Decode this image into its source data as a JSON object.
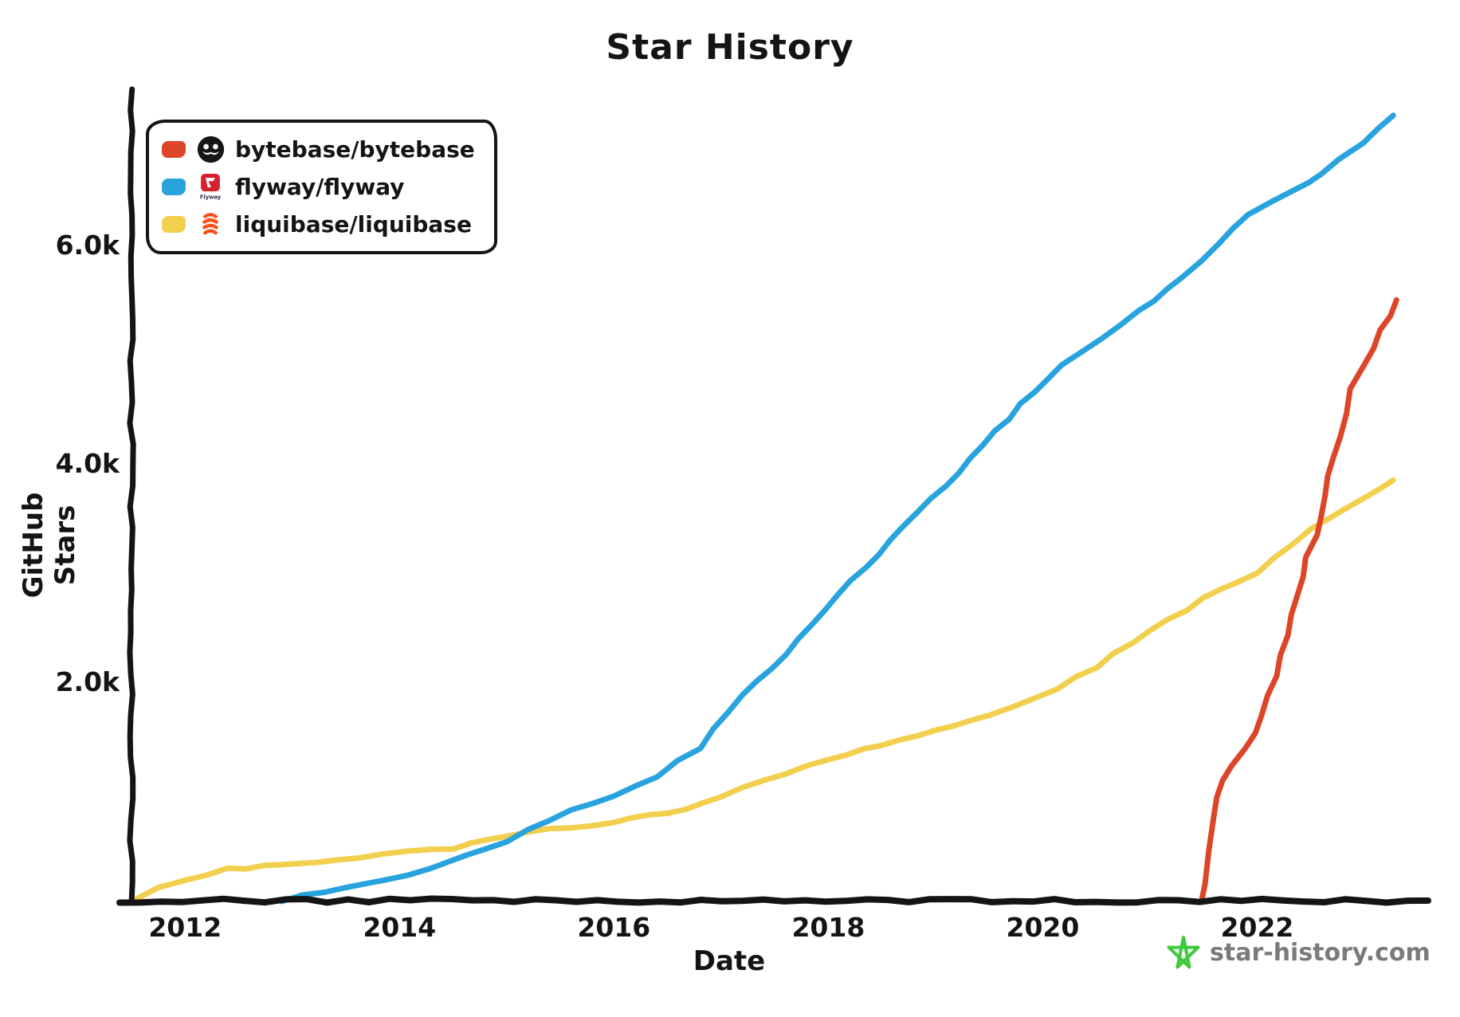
{
  "watermark": {
    "label": "star-history.com",
    "star_color": "#3ecb3e",
    "text_color": "#7a7a7a"
  },
  "legend": {
    "flyway_icon_text": "Flyway"
  },
  "colors": {
    "background": "#ffffff",
    "axis": "#141414",
    "bytebase": "#dd4528",
    "flyway": "#28a3dd",
    "liquibase": "#f2cf4d"
  },
  "chart_data": {
    "type": "line",
    "title": "Star History",
    "xlabel": "Date",
    "ylabel": "GitHub Stars",
    "grid": false,
    "legend_position": "top-left",
    "xlim": [
      2011.5,
      2023.58
    ],
    "ylim": [
      0,
      7400
    ],
    "x_ticks": [
      2012,
      2014,
      2016,
      2018,
      2020,
      2022
    ],
    "y_ticks": [
      {
        "value": 2000,
        "label": "2.0k"
      },
      {
        "value": 4000,
        "label": "4.0k"
      },
      {
        "value": 6000,
        "label": "6.0k"
      }
    ],
    "series": [
      {
        "name": "bytebase/bytebase",
        "color": "#dd4528",
        "points": [
          [
            2021.48,
            0
          ],
          [
            2021.52,
            310
          ],
          [
            2021.56,
            620
          ],
          [
            2021.62,
            950
          ],
          [
            2021.75,
            1240
          ],
          [
            2021.9,
            1390
          ],
          [
            2022.05,
            1690
          ],
          [
            2022.17,
            2060
          ],
          [
            2022.28,
            2430
          ],
          [
            2022.38,
            2800
          ],
          [
            2022.46,
            3140
          ],
          [
            2022.56,
            3350
          ],
          [
            2022.67,
            3880
          ],
          [
            2022.78,
            4240
          ],
          [
            2022.88,
            4680
          ],
          [
            2023.0,
            4900
          ],
          [
            2023.16,
            5220
          ],
          [
            2023.3,
            5500
          ]
        ]
      },
      {
        "name": "flyway/flyway",
        "color": "#28a3dd",
        "points": [
          [
            2012.9,
            0
          ],
          [
            2013.3,
            80
          ],
          [
            2013.85,
            180
          ],
          [
            2014.3,
            300
          ],
          [
            2014.8,
            460
          ],
          [
            2015.2,
            640
          ],
          [
            2015.6,
            830
          ],
          [
            2016.0,
            950
          ],
          [
            2016.4,
            1140
          ],
          [
            2016.8,
            1400
          ],
          [
            2017.2,
            1880
          ],
          [
            2017.6,
            2260
          ],
          [
            2017.95,
            2660
          ],
          [
            2018.35,
            3060
          ],
          [
            2018.7,
            3420
          ],
          [
            2019.1,
            3800
          ],
          [
            2019.44,
            4170
          ],
          [
            2019.8,
            4540
          ],
          [
            2020.18,
            4900
          ],
          [
            2020.55,
            5140
          ],
          [
            2020.9,
            5390
          ],
          [
            2021.3,
            5700
          ],
          [
            2021.65,
            6020
          ],
          [
            2021.92,
            6270
          ],
          [
            2022.12,
            6400
          ],
          [
            2022.35,
            6500
          ],
          [
            2022.6,
            6650
          ],
          [
            2022.77,
            6780
          ],
          [
            2023.0,
            6930
          ],
          [
            2023.27,
            7190
          ]
        ]
      },
      {
        "name": "liquibase/liquibase",
        "color": "#f2cf4d",
        "points": [
          [
            2011.5,
            0
          ],
          [
            2011.75,
            120
          ],
          [
            2012.0,
            190
          ],
          [
            2012.4,
            290
          ],
          [
            2012.9,
            330
          ],
          [
            2013.4,
            380
          ],
          [
            2013.85,
            420
          ],
          [
            2014.5,
            480
          ],
          [
            2015.2,
            630
          ],
          [
            2016.0,
            720
          ],
          [
            2016.5,
            800
          ],
          [
            2017.0,
            940
          ],
          [
            2017.4,
            1110
          ],
          [
            2018.0,
            1290
          ],
          [
            2018.5,
            1420
          ],
          [
            2019.0,
            1560
          ],
          [
            2019.5,
            1700
          ],
          [
            2019.94,
            1850
          ],
          [
            2020.5,
            2140
          ],
          [
            2021.0,
            2480
          ],
          [
            2021.5,
            2760
          ],
          [
            2022.0,
            3000
          ],
          [
            2022.5,
            3390
          ],
          [
            2023.0,
            3680
          ],
          [
            2023.27,
            3850
          ]
        ]
      }
    ]
  }
}
